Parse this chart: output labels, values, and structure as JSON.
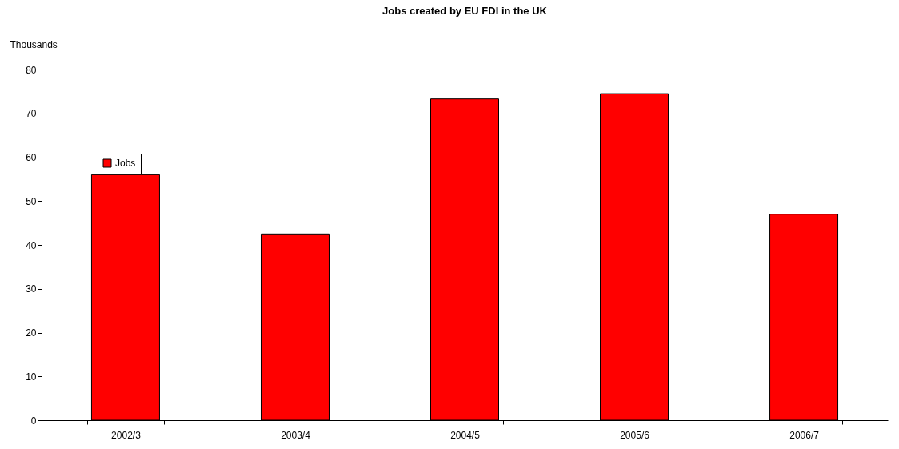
{
  "chart_data": {
    "type": "bar",
    "title": "Jobs created by EU FDI in the UK",
    "ylabel": "Thousands",
    "categories": [
      "2002/3",
      "2003/4",
      "2004/5",
      "2005/6",
      "2006/7"
    ],
    "series": [
      {
        "name": "Jobs",
        "color": "#ff0000",
        "values": [
          56,
          42.5,
          73.3,
          74.5,
          47
        ]
      }
    ],
    "ylim": [
      0,
      80
    ],
    "yticks": [
      0,
      10,
      20,
      30,
      40,
      50,
      60,
      70,
      80
    ],
    "grid": false,
    "legend": "top left"
  }
}
